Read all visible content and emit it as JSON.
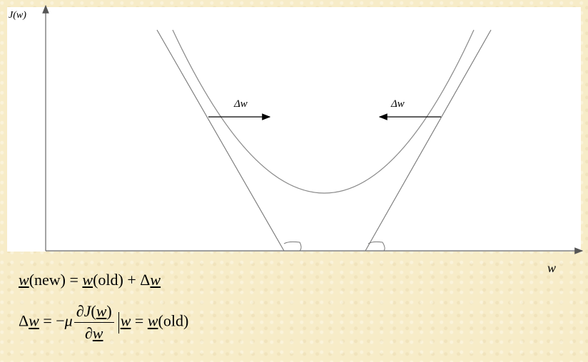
{
  "axis": {
    "y_label": "J(w)",
    "x_label": "w"
  },
  "arrows": {
    "left_label": "Δw",
    "right_label": "Δw"
  },
  "equations": {
    "eq1": {
      "w1": "w",
      "new": "(new) = ",
      "w2": "w",
      "old": "(old) + Δ",
      "w3": "w"
    },
    "eq2": {
      "delta": "Δ",
      "w1": "w",
      "eq": " = −",
      "mu": "μ",
      "num_d": "∂",
      "num_J": "J",
      "num_open": "(",
      "num_w": "w",
      "num_close": ")",
      "den_d": "∂",
      "den_w": "w",
      "w2": "w",
      "eq3": " = ",
      "w3": "w",
      "old": "(old)"
    }
  },
  "colors": {
    "background": "#f7ecc8",
    "panel": "#ffffff",
    "axis": "#666666",
    "curve": "#888888"
  }
}
